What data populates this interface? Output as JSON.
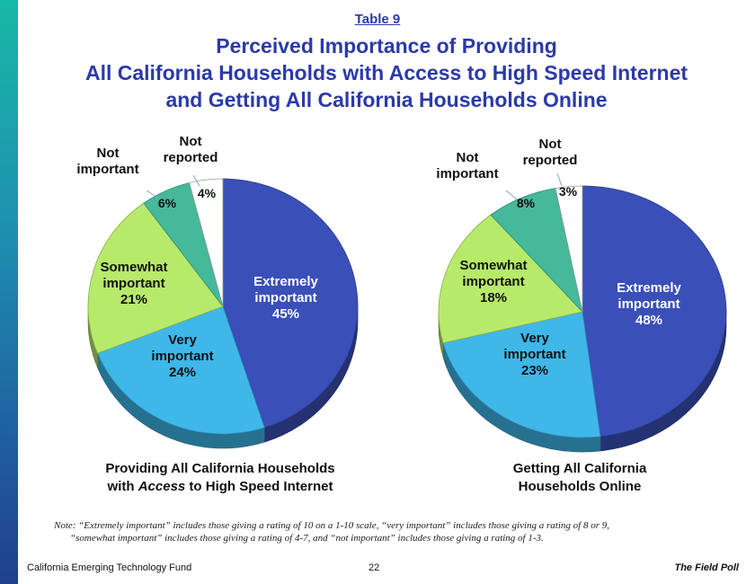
{
  "header": {
    "table_label": "Table 9",
    "title_lines": [
      "Perceived Importance of Providing",
      "All California Households with Access to High Speed Internet",
      "and Getting All California Households Online"
    ]
  },
  "chart_data": [
    {
      "type": "pie",
      "caption_line1": "Providing All California Households",
      "caption_line2_pre": "with ",
      "caption_line2_em": "Access",
      "caption_line2_post": " to High Speed Internet",
      "slices": [
        {
          "label": [
            "Extremely",
            "important"
          ],
          "value": 45,
          "value_label": "45%",
          "color": "#3a4fb8"
        },
        {
          "label": [
            "Very",
            "important"
          ],
          "value": 24,
          "value_label": "24%",
          "color": "#3fb7e8"
        },
        {
          "label": [
            "Somewhat",
            "important"
          ],
          "value": 21,
          "value_label": "21%",
          "color": "#b7ea6a"
        },
        {
          "label": [
            "Not",
            "important"
          ],
          "value": 6,
          "value_label": "6%",
          "color": "#45b99a"
        },
        {
          "label": [
            "Not",
            "reported"
          ],
          "value": 4,
          "value_label": "4%",
          "color": "#ffffff"
        }
      ]
    },
    {
      "type": "pie",
      "caption_line1": "Getting All California",
      "caption_line2_pre": "Households Online",
      "caption_line2_em": "",
      "caption_line2_post": "",
      "slices": [
        {
          "label": [
            "Extremely",
            "important"
          ],
          "value": 48,
          "value_label": "48%",
          "color": "#3a4fb8"
        },
        {
          "label": [
            "Very",
            "important"
          ],
          "value": 23,
          "value_label": "23%",
          "color": "#3fb7e8"
        },
        {
          "label": [
            "Somewhat",
            "important"
          ],
          "value": 18,
          "value_label": "18%",
          "color": "#b7ea6a"
        },
        {
          "label": [
            "Not",
            "important"
          ],
          "value": 8,
          "value_label": "8%",
          "color": "#45b99a"
        },
        {
          "label": [
            "Not",
            "reported"
          ],
          "value": 3,
          "value_label": "3%",
          "color": "#ffffff"
        }
      ]
    }
  ],
  "note": {
    "line1": "Note:  “Extremely important” includes those giving a rating of 10 on a 1-10 scale, “very important” includes those giving a rating of 8 or 9,",
    "line2": "“somewhat important” includes those giving a rating of 4-7, and “not important” includes those giving a rating of  1-3."
  },
  "footer": {
    "left": "California Emerging Technology Fund",
    "page": "22",
    "right": "The Field Poll"
  }
}
